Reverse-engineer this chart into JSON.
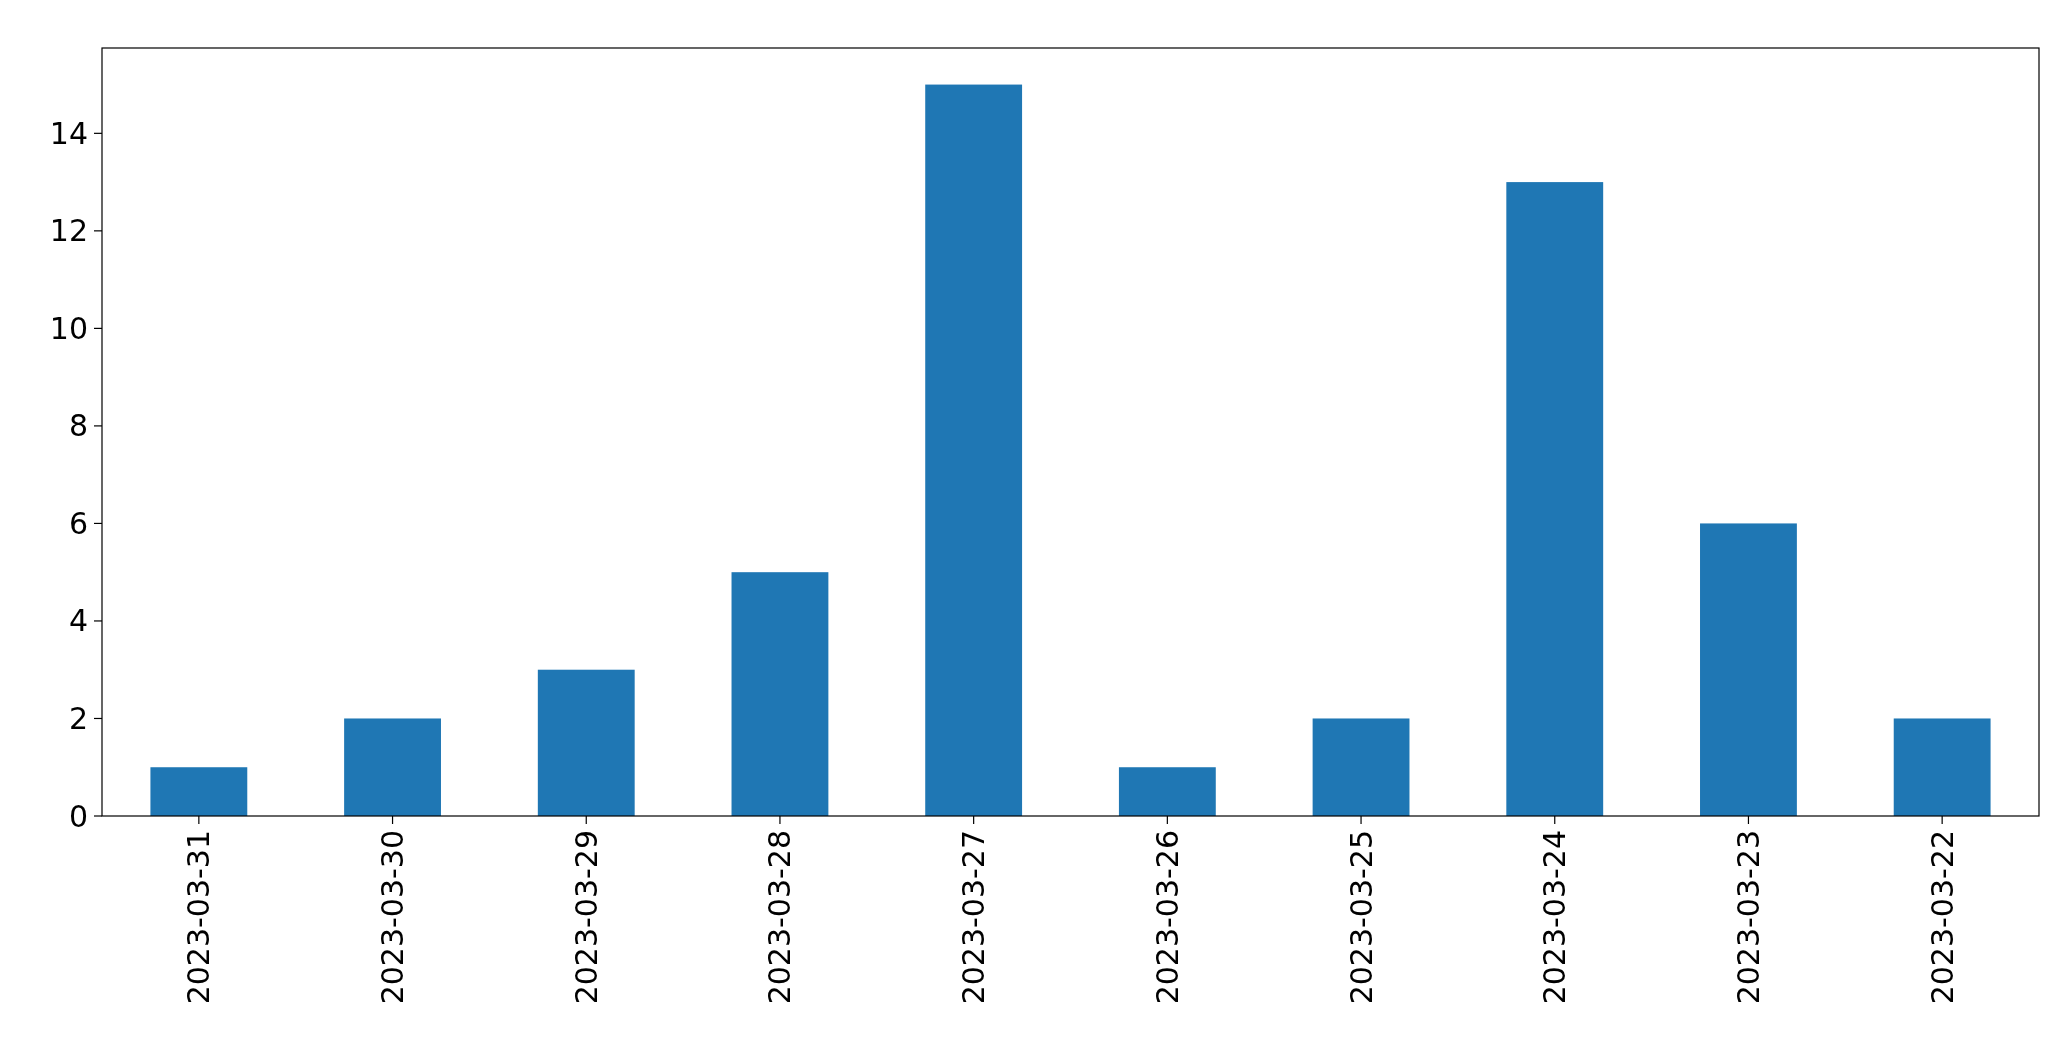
{
  "chart_data": {
    "type": "bar",
    "categories": [
      "2023-03-31",
      "2023-03-30",
      "2023-03-29",
      "2023-03-28",
      "2023-03-27",
      "2023-03-26",
      "2023-03-25",
      "2023-03-24",
      "2023-03-23",
      "2023-03-22"
    ],
    "values": [
      1,
      2,
      3,
      5,
      15,
      1,
      2,
      13,
      6,
      2
    ],
    "color": "#1f77b4",
    "ylim": [
      0,
      15.75
    ],
    "yticks": [
      0,
      2,
      4,
      6,
      8,
      10,
      12,
      14
    ]
  }
}
